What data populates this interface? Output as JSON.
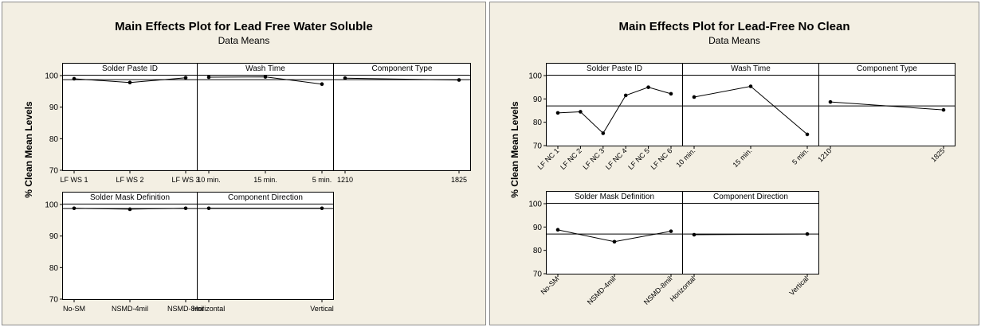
{
  "figures": [
    {
      "title": "Main Effects Plot for Lead Free Water Soluble",
      "subtitle": "Data Means",
      "ylabel": "% Clean Mean Levels"
    },
    {
      "title": "Main Effects Plot for Lead-Free No Clean",
      "subtitle": "Data Means",
      "ylabel": "% Clean Mean Levels"
    }
  ],
  "chart_data": [
    {
      "type": "line",
      "title": "Main Effects Plot for Lead Free Water Soluble",
      "subtitle": "Data Means",
      "ylabel": "% Clean Mean Levels",
      "ylim": [
        70,
        100
      ],
      "yticks": [
        70,
        80,
        90,
        100
      ],
      "reference_line": 98.7,
      "tick_label_style": "horizontal",
      "factors": [
        {
          "name": "Solder Paste ID",
          "categories": [
            "LF WS 1",
            "LF WS 2",
            "LF WS 3"
          ],
          "values": [
            99.0,
            97.8,
            99.3
          ]
        },
        {
          "name": "Wash Time",
          "categories": [
            "10 min.",
            "15 min.",
            "5 min."
          ],
          "values": [
            99.5,
            99.6,
            97.3
          ]
        },
        {
          "name": "Component Type",
          "categories": [
            "1210",
            "1825"
          ],
          "values": [
            99.2,
            98.6
          ]
        },
        {
          "name": "Solder Mask Definition",
          "categories": [
            "No-SM",
            "NSMD-4mil",
            "NSMD-8mil"
          ],
          "values": [
            98.8,
            98.5,
            98.8
          ]
        },
        {
          "name": "Component Direction",
          "categories": [
            "Horizontal",
            "Vertical"
          ],
          "values": [
            98.8,
            98.8
          ]
        }
      ]
    },
    {
      "type": "line",
      "title": "Main Effects Plot for Lead-Free No Clean",
      "subtitle": "Data Means",
      "ylabel": "% Clean Mean Levels",
      "ylim": [
        70,
        100
      ],
      "yticks": [
        70,
        80,
        90,
        100
      ],
      "reference_line": 87.0,
      "tick_label_style": "rotated",
      "factors": [
        {
          "name": "Solder Paste ID",
          "categories": [
            "LF NC 1",
            "LF NC 2",
            "LF NC 3",
            "LF NC 4",
            "LF NC 5",
            "LF NC 6"
          ],
          "values": [
            84.0,
            84.5,
            75.3,
            91.5,
            95.0,
            92.2
          ]
        },
        {
          "name": "Wash Time",
          "categories": [
            "10 min.",
            "15 min.",
            "5 min."
          ],
          "values": [
            90.8,
            95.4,
            74.8
          ]
        },
        {
          "name": "Component Type",
          "categories": [
            "1210",
            "1825"
          ],
          "values": [
            88.7,
            85.3
          ]
        },
        {
          "name": "Solder Mask Definition",
          "categories": [
            "No-SM",
            "NSMD-4mil",
            "NSMD-8mil"
          ],
          "values": [
            88.8,
            83.7,
            88.2
          ]
        },
        {
          "name": "Component Direction",
          "categories": [
            "Horizontal",
            "Vertical"
          ],
          "values": [
            86.7,
            87.0
          ]
        }
      ]
    }
  ]
}
